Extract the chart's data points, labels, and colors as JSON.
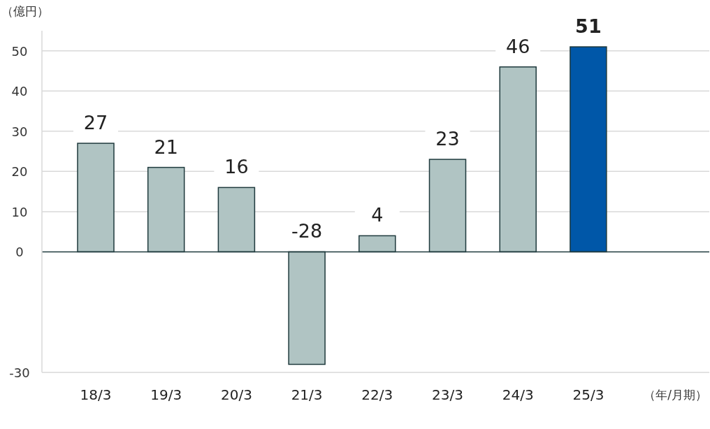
{
  "chart_data": {
    "type": "bar",
    "ylabel": "（億円）",
    "xlabel": "（年/月期）",
    "categories": [
      "18/3",
      "19/3",
      "20/3",
      "21/3",
      "22/3",
      "23/3",
      "24/3",
      "25/3"
    ],
    "values": [
      27,
      21,
      16,
      -28,
      4,
      23,
      46,
      51
    ],
    "value_labels": [
      "27",
      "21",
      "16",
      "-28",
      "4",
      "23",
      "46",
      "**51**"
    ],
    "colors": [
      "#b0c4c3",
      "#b0c4c3",
      "#b0c4c3",
      "#b0c4c3",
      "#b0c4c3",
      "#b0c4c3",
      "#b0c4c3",
      "#0057a8"
    ],
    "ylim": [
      -30,
      55
    ],
    "yticks": [
      -30,
      0,
      10,
      20,
      30,
      40,
      50
    ],
    "grid": "y"
  }
}
